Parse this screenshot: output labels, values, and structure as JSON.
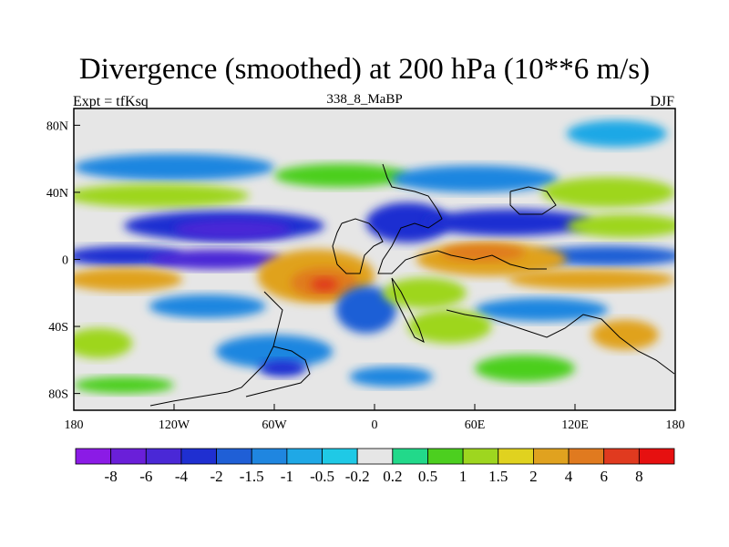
{
  "header": {
    "title": "Divergence (smoothed) at 200 hPa (10**6 m/s)",
    "left_label": "Expt = tfKsq",
    "center_label": "338_8_MaBP",
    "right_label": "DJF"
  },
  "map": {
    "lon_range": [
      -180,
      180
    ],
    "lat_range": [
      -90,
      90
    ],
    "x_ticks": [
      {
        "value": -180,
        "label": "180"
      },
      {
        "value": -120,
        "label": "120W"
      },
      {
        "value": -60,
        "label": "60W"
      },
      {
        "value": 0,
        "label": "0"
      },
      {
        "value": 60,
        "label": "60E"
      },
      {
        "value": 120,
        "label": "120E"
      },
      {
        "value": 180,
        "label": "180"
      }
    ],
    "y_ticks": [
      {
        "value": 80,
        "label": "80N"
      },
      {
        "value": 40,
        "label": "40N"
      },
      {
        "value": 0,
        "label": "0"
      },
      {
        "value": -40,
        "label": "40S"
      },
      {
        "value": -80,
        "label": "80S"
      }
    ],
    "background_color": "#e6e6e6",
    "blobs": [
      {
        "lon": -120,
        "lat": 55,
        "rx": 60,
        "ry": 8,
        "level": -1
      },
      {
        "lon": -20,
        "lat": 50,
        "rx": 40,
        "ry": 7,
        "level": 0.5
      },
      {
        "lon": 60,
        "lat": 48,
        "rx": 50,
        "ry": 8,
        "level": -1
      },
      {
        "lon": 140,
        "lat": 40,
        "rx": 40,
        "ry": 9,
        "level": 1
      },
      {
        "lon": 145,
        "lat": 75,
        "rx": 30,
        "ry": 8,
        "level": -0.5
      },
      {
        "lon": -130,
        "lat": 38,
        "rx": 55,
        "ry": 7,
        "level": 1
      },
      {
        "lon": -90,
        "lat": 20,
        "rx": 60,
        "ry": 9,
        "level": -2
      },
      {
        "lon": -85,
        "lat": 18,
        "rx": 35,
        "ry": 6,
        "level": -4
      },
      {
        "lon": 20,
        "lat": 22,
        "rx": 25,
        "ry": 12,
        "level": -2
      },
      {
        "lon": 80,
        "lat": 22,
        "rx": 50,
        "ry": 8,
        "level": -2
      },
      {
        "lon": 150,
        "lat": 20,
        "rx": 35,
        "ry": 7,
        "level": 1
      },
      {
        "lon": -150,
        "lat": 2,
        "rx": 35,
        "ry": 6,
        "level": -2
      },
      {
        "lon": -95,
        "lat": 0,
        "rx": 40,
        "ry": 6,
        "level": -4
      },
      {
        "lon": 140,
        "lat": 2,
        "rx": 45,
        "ry": 6,
        "level": -1.5
      },
      {
        "lon": -150,
        "lat": -12,
        "rx": 35,
        "ry": 7,
        "level": 2
      },
      {
        "lon": -35,
        "lat": -10,
        "rx": 35,
        "ry": 16,
        "level": 2
      },
      {
        "lon": -30,
        "lat": -14,
        "rx": 20,
        "ry": 9,
        "level": 4
      },
      {
        "lon": -30,
        "lat": -15,
        "rx": 8,
        "ry": 4,
        "level": 6
      },
      {
        "lon": 70,
        "lat": 0,
        "rx": 45,
        "ry": 10,
        "level": 2
      },
      {
        "lon": 65,
        "lat": 4,
        "rx": 25,
        "ry": 5,
        "level": 4
      },
      {
        "lon": 130,
        "lat": -12,
        "rx": 50,
        "ry": 6,
        "level": 2
      },
      {
        "lon": -100,
        "lat": -28,
        "rx": 35,
        "ry": 7,
        "level": -1
      },
      {
        "lon": -5,
        "lat": -30,
        "rx": 18,
        "ry": 14,
        "level": -1.5
      },
      {
        "lon": 30,
        "lat": -20,
        "rx": 25,
        "ry": 9,
        "level": 1
      },
      {
        "lon": 100,
        "lat": -30,
        "rx": 40,
        "ry": 7,
        "level": -1
      },
      {
        "lon": -165,
        "lat": -50,
        "rx": 20,
        "ry": 9,
        "level": 1
      },
      {
        "lon": -60,
        "lat": -55,
        "rx": 35,
        "ry": 10,
        "level": -1
      },
      {
        "lon": -55,
        "lat": -65,
        "rx": 14,
        "ry": 5,
        "level": -2
      },
      {
        "lon": 45,
        "lat": -40,
        "rx": 25,
        "ry": 10,
        "level": 1
      },
      {
        "lon": 150,
        "lat": -45,
        "rx": 20,
        "ry": 9,
        "level": 2
      },
      {
        "lon": 90,
        "lat": -65,
        "rx": 30,
        "ry": 8,
        "level": 0.5
      },
      {
        "lon": 10,
        "lat": -70,
        "rx": 25,
        "ry": 6,
        "level": -1
      },
      {
        "lon": -150,
        "lat": -75,
        "rx": 30,
        "ry": 5,
        "level": 0.5
      }
    ]
  },
  "colorbar": {
    "labels": [
      "-8",
      "-6",
      "-4",
      "-2",
      "-1.5",
      "-1",
      "-0.5",
      "-0.2",
      "0.2",
      "0.5",
      "1",
      "1.5",
      "2",
      "4",
      "6",
      "8"
    ],
    "colors": [
      "#8b1be6",
      "#6a1fd9",
      "#4a28d6",
      "#1f2fd1",
      "#1f5fd6",
      "#1f86e0",
      "#1fa8e6",
      "#1fc9e6",
      "#e6e6e6",
      "#22d98a",
      "#4ccf1f",
      "#9ed61f",
      "#e0d21f",
      "#e0a21f",
      "#e07a1f",
      "#e03a1f",
      "#e61010"
    ],
    "level_colors": {
      "-8": "#8b1be6",
      "-6": "#6a1fd9",
      "-4": "#4a28d6",
      "-2": "#1f2fd1",
      "-1.5": "#1f5fd6",
      "-1": "#1f86e0",
      "-0.5": "#1fa8e6",
      "-0.2": "#1fc9e6",
      "0.2": "#22d98a",
      "0.5": "#4ccf1f",
      "1": "#9ed61f",
      "1.5": "#e0d21f",
      "2": "#e0a21f",
      "4": "#e07a1f",
      "6": "#e03a1f",
      "8": "#e61010"
    }
  }
}
